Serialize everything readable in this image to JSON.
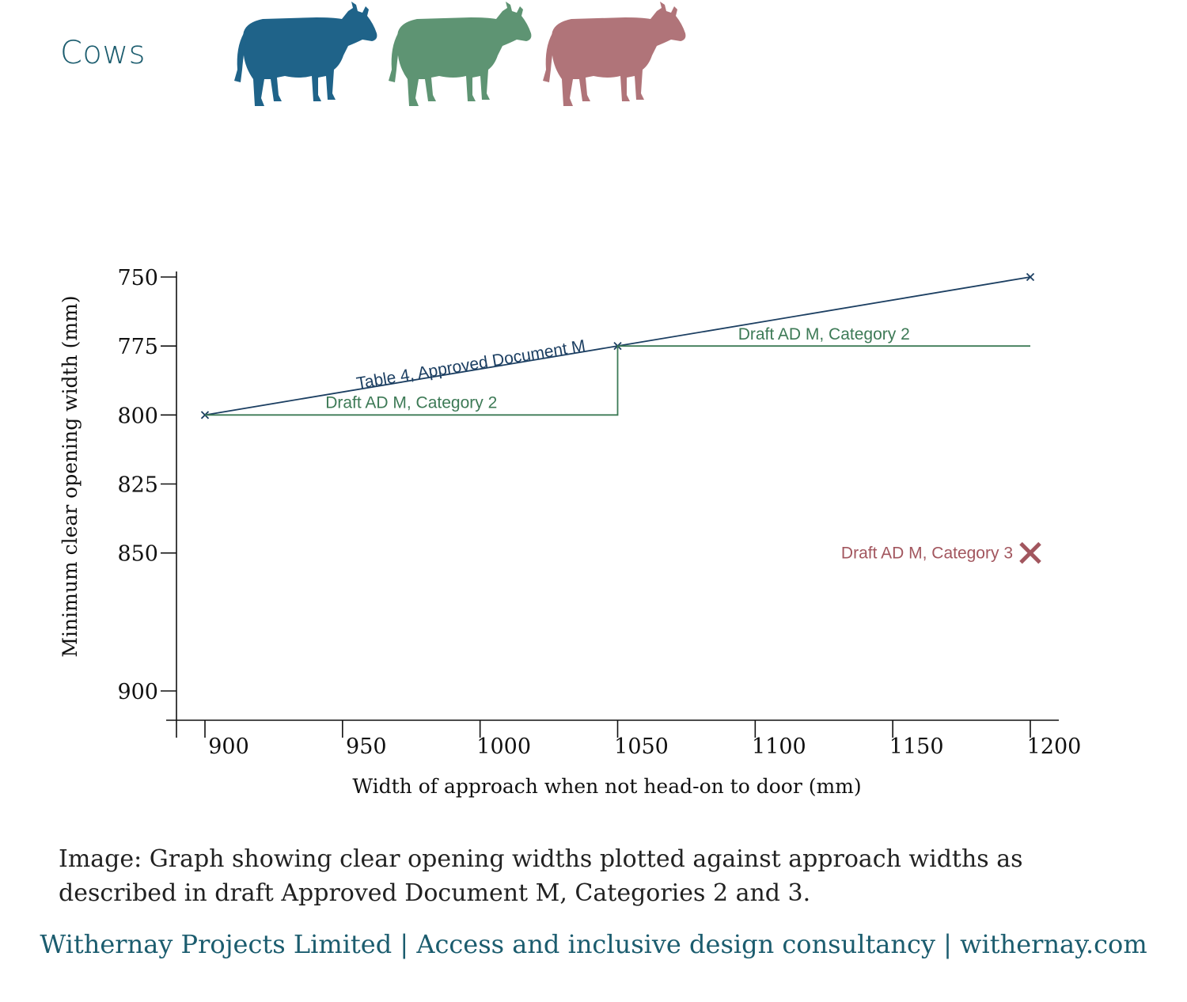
{
  "heading": "Cows",
  "colors": {
    "teal": "#1f6389",
    "green": "#5e9473",
    "pink": "#b07479",
    "axis": "#111111",
    "heading": "#1b5c6e",
    "footer": "#1b5c6e",
    "series_navy": "#1c3f62",
    "series_green": "#3d7a56",
    "series_pink": "#a2565e"
  },
  "icons": [
    "cow-silhouette-teal-icon",
    "cow-silhouette-green-icon",
    "cow-silhouette-pink-icon"
  ],
  "chart_data": {
    "type": "line",
    "xlabel": "Width of approach when not head-on to door (mm)",
    "ylabel": "Minimum clear opening width (mm)",
    "xlim": [
      895,
      1205
    ],
    "ylim": [
      911,
      743
    ],
    "y_inverted": true,
    "grid": false,
    "x_ticks": [
      900,
      950,
      1000,
      1050,
      1100,
      1150,
      1200
    ],
    "y_ticks": [
      750,
      775,
      800,
      825,
      850,
      900
    ],
    "series": [
      {
        "name": "Table 4, Approved Document M",
        "style": "line-with-x-markers",
        "x": [
          900,
          1050,
          1200
        ],
        "y": [
          800,
          775,
          750
        ]
      },
      {
        "name": "Draft AD M, Category 2",
        "style": "step",
        "x": [
          900,
          1050,
          1050,
          1200
        ],
        "y": [
          800,
          800,
          775,
          775
        ]
      },
      {
        "name": "Draft AD M, Category 3",
        "style": "single-point",
        "x": [
          1200
        ],
        "y": [
          850
        ]
      }
    ],
    "annotations": [
      {
        "text": "Table 4, Approved Document M",
        "series": 0
      },
      {
        "text": "Draft AD M, Category 2",
        "series": 1,
        "segment": "left"
      },
      {
        "text": "Draft AD M, Category 2",
        "series": 1,
        "segment": "right"
      },
      {
        "text": "Draft AD M, Category 3",
        "series": 2
      }
    ]
  },
  "caption": "Image: Graph showing clear opening widths plotted against approach widths as described in draft Approved Document M, Categories 2 and 3.",
  "footer": "Withernay Projects Limited | Access and inclusive design consultancy | withernay.com"
}
